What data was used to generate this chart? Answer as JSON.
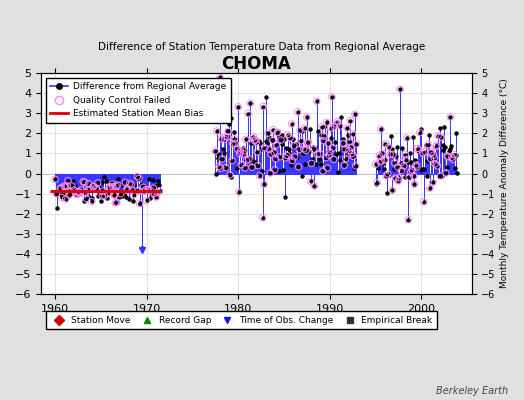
{
  "title": "CHOMA",
  "subtitle": "Difference of Station Temperature Data from Regional Average",
  "ylabel_right": "Monthly Temperature Anomaly Difference (°C)",
  "xlim": [
    1958.5,
    2005.5
  ],
  "ylim": [
    -6,
    5
  ],
  "yticks": [
    -6,
    -5,
    -4,
    -3,
    -2,
    -1,
    0,
    1,
    2,
    3,
    4,
    5
  ],
  "xticks": [
    1960,
    1970,
    1980,
    1990,
    2000
  ],
  "fig_bg_color": "#e0e0e0",
  "plot_bg_color": "#ffffff",
  "grid_color": "#cccccc",
  "bias_line_color": "#dd0000",
  "bias_line_value": -0.85,
  "bias_xstart": 1959.5,
  "bias_xend": 1971.5,
  "line_color": "#3333ff",
  "dot_color": "#000000",
  "qc_color": "#ff88ff",
  "watermark": "Berkeley Earth"
}
